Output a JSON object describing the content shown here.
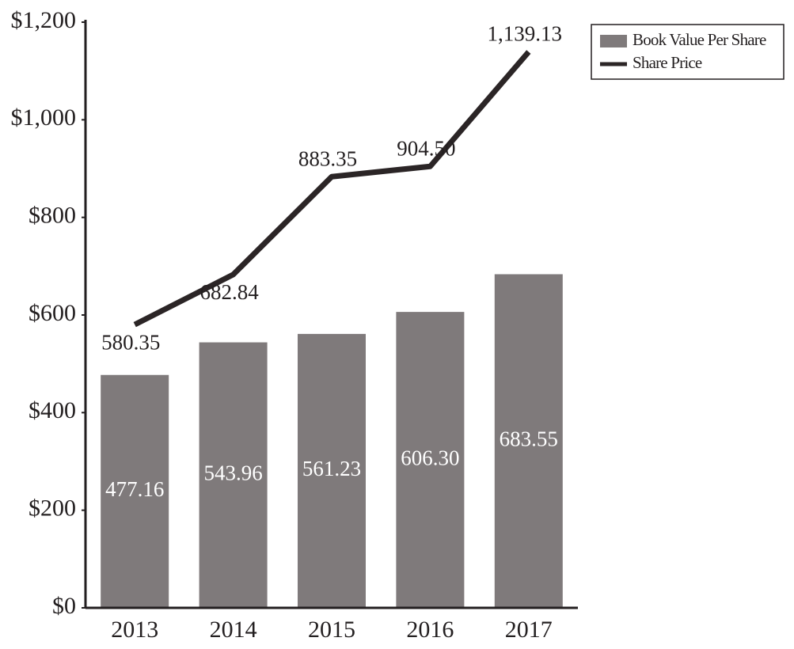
{
  "chart_data": {
    "type": "bar",
    "categories": [
      "2013",
      "2014",
      "2015",
      "2016",
      "2017"
    ],
    "series": [
      {
        "name": "Book Value Per Share",
        "type": "bar",
        "color": "#7f7a7b",
        "values": [
          477.16,
          543.96,
          561.23,
          606.3,
          683.55
        ],
        "value_labels": [
          "477.16",
          "543.96",
          "561.23",
          "606.30",
          "683.55"
        ]
      },
      {
        "name": "Share Price",
        "type": "line",
        "color": "#2b2526",
        "values": [
          580.35,
          682.84,
          883.35,
          904.5,
          1139.13
        ],
        "value_labels": [
          "580.35",
          "682.84",
          "883.35",
          "904.50",
          "1,139.13"
        ]
      }
    ],
    "ylim": [
      0,
      1200
    ],
    "yticks": [
      {
        "value": 0,
        "label": "$0"
      },
      {
        "value": 200,
        "label": "$200"
      },
      {
        "value": 400,
        "label": "$400"
      },
      {
        "value": 600,
        "label": "$600"
      },
      {
        "value": 800,
        "label": "$800"
      },
      {
        "value": 1000,
        "label": "$1,000"
      },
      {
        "value": 1200,
        "label": "$1,200"
      }
    ],
    "grid": false,
    "legend": "top-right"
  }
}
